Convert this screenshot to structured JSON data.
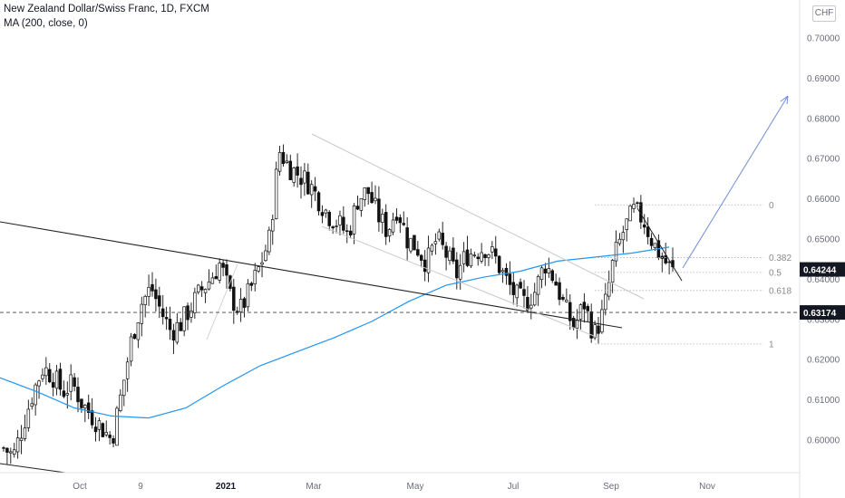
{
  "header": {
    "title": "New Zealand Dollar/Swiss Franc, 1D, FXCM",
    "indicator": "MA (200, close, 0)"
  },
  "currency_button": "CHF",
  "colors": {
    "ma": "#2196f3",
    "projection": "#6f8ed6",
    "trendline": "#222222",
    "channel": "#c9c9c9",
    "fib": "#b0b0b0",
    "candle": "#111111",
    "current_price_bg": "#131722",
    "hline_price_bg": "#131722"
  },
  "chart_data": {
    "type": "candlestick",
    "symbol": "NZDCHF",
    "y_range": [
      0.5905,
      0.7075
    ],
    "y_ticks": [
      "0.70000",
      "0.69000",
      "0.68000",
      "0.67000",
      "0.66000",
      "0.65000",
      "0.64000",
      "0.63000",
      "0.62000",
      "0.61000",
      "0.60000"
    ],
    "x_ticks": [
      {
        "label": "Oct",
        "bold": false
      },
      {
        "label": "9",
        "bold": false
      },
      {
        "label": "2021",
        "bold": true
      },
      {
        "label": "Mar",
        "bold": false
      },
      {
        "label": "May",
        "bold": false
      },
      {
        "label": "Jul",
        "bold": false
      },
      {
        "label": "Sep",
        "bold": false
      },
      {
        "label": "Nov",
        "bold": false
      }
    ],
    "price_path": [
      0.598,
      0.596,
      0.604,
      0.612,
      0.618,
      0.616,
      0.612,
      0.614,
      0.609,
      0.606,
      0.603,
      0.6,
      0.612,
      0.625,
      0.634,
      0.638,
      0.632,
      0.627,
      0.629,
      0.633,
      0.637,
      0.64,
      0.644,
      0.636,
      0.632,
      0.637,
      0.643,
      0.65,
      0.672,
      0.668,
      0.666,
      0.664,
      0.66,
      0.656,
      0.654,
      0.651,
      0.66,
      0.662,
      0.656,
      0.652,
      0.658,
      0.65,
      0.648,
      0.644,
      0.65,
      0.646,
      0.641,
      0.646,
      0.647,
      0.648,
      0.645,
      0.64,
      0.636,
      0.634,
      0.637,
      0.644,
      0.64,
      0.633,
      0.628,
      0.634,
      0.626,
      0.632,
      0.645,
      0.652,
      0.657,
      0.655,
      0.649,
      0.645,
      0.642
    ],
    "moving_average": {
      "name": "MA (200, close, 0)",
      "values": [
        0.6155,
        0.612,
        0.608,
        0.606,
        0.6055,
        0.608,
        0.6135,
        0.6185,
        0.622,
        0.6255,
        0.6295,
        0.6345,
        0.6385,
        0.6405,
        0.642,
        0.6445,
        0.6455,
        0.6465,
        0.648
      ]
    },
    "current_price": "0.64244",
    "horizontal_line": {
      "value": "0.63174",
      "style": "dashed"
    },
    "fibonacci": [
      {
        "label": "0",
        "value": 0.6585
      },
      {
        "label": "0.382",
        "value": 0.6454
      },
      {
        "label": "0.5",
        "value": 0.6417
      },
      {
        "label": "0.618",
        "value": 0.6372
      },
      {
        "label": "1",
        "value": 0.6239
      }
    ],
    "annotations": [
      "descending channel",
      "long-term descending trendline",
      "short-term descending trendline",
      "bullish projection arrow"
    ]
  }
}
